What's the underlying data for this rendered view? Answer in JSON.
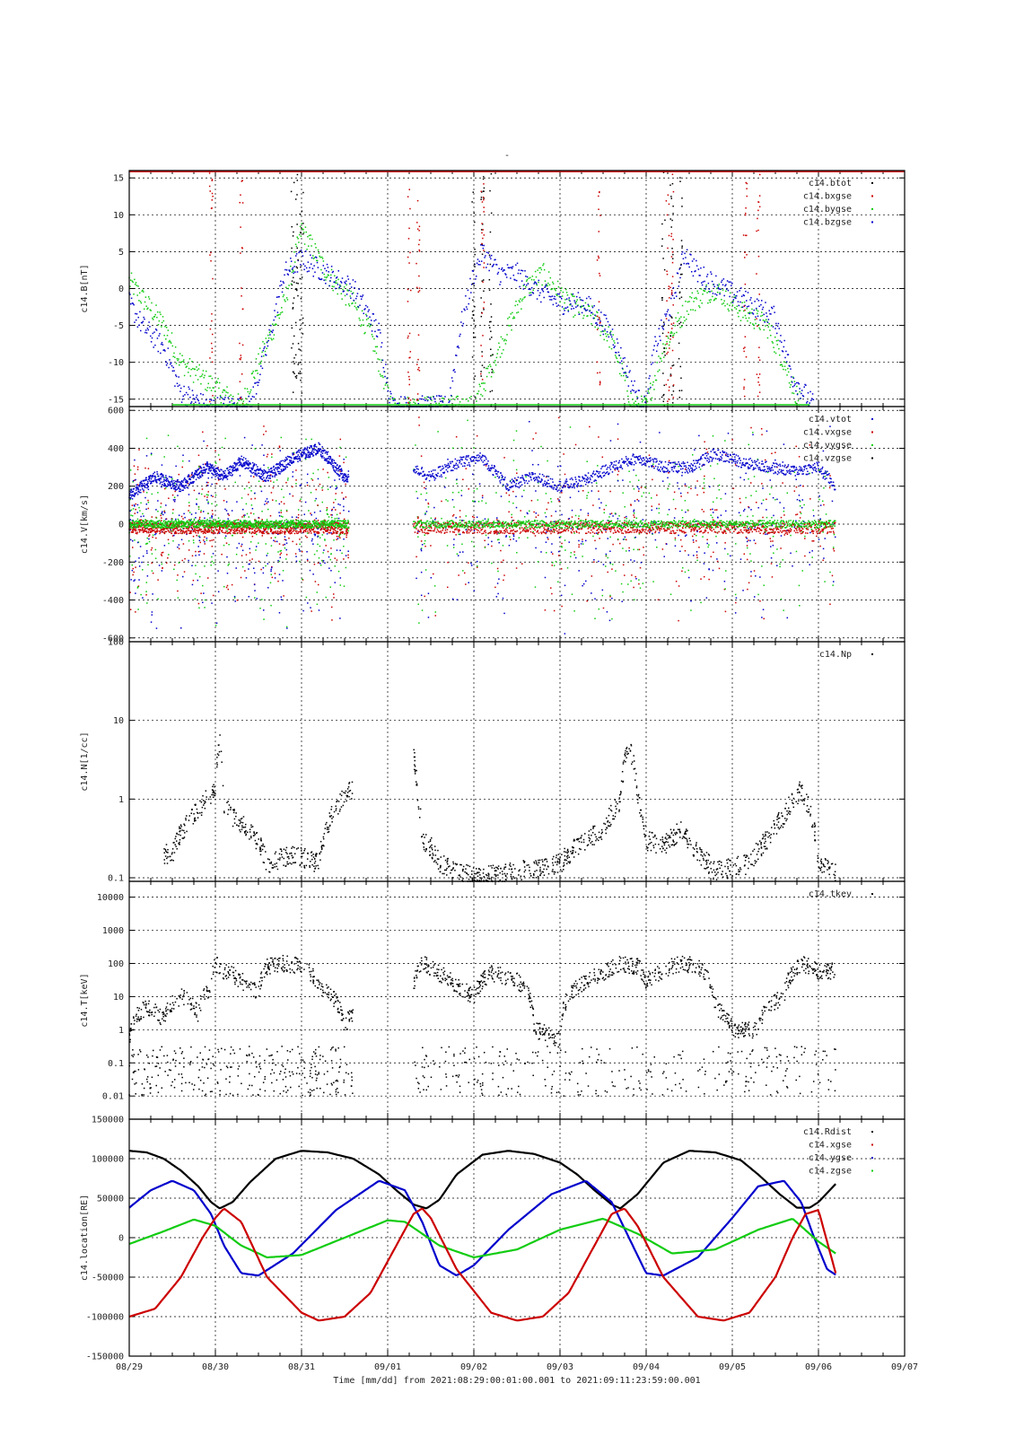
{
  "title": "-",
  "time_axis": {
    "ticks": [
      "08/29",
      "08/30",
      "08/31",
      "09/01",
      "09/02",
      "09/03",
      "09/04",
      "09/05",
      "09/06",
      "09/07"
    ],
    "label": "Time [mm/dd]  from 2021:08:29:00:01:00.001  to  2021:09:11:23:59:00.001"
  },
  "colors": {
    "black": "#000000",
    "red": "#cc0000",
    "green": "#11cc11",
    "blue": "#0000cc"
  },
  "chart_data": [
    {
      "type": "scatter",
      "id": "B",
      "ylabel": "c14.B[nT]",
      "ylim": [
        -16,
        16
      ],
      "yticks": [
        -15,
        -10,
        -5,
        0,
        5,
        10,
        15
      ],
      "ytick_labels": [
        "-15",
        "-10",
        "-5",
        "0",
        "5",
        "10",
        "15"
      ],
      "legend": [
        "c14.btot",
        "c14.bxgse",
        "c14.bygse",
        "c14.bzgse"
      ],
      "series": [
        {
          "name": "c14.bygse",
          "color": "green",
          "x": [
            0,
            0.2,
            0.4,
            0.6,
            1.3,
            1.5,
            1.8,
            2.0,
            2.3,
            2.6,
            2.8,
            3.05,
            4.0,
            4.3,
            4.6,
            4.8,
            5.1,
            5.4,
            5.6,
            5.85,
            6.0,
            6.2,
            6.5,
            6.8,
            7.1,
            7.4,
            7.6,
            7.8
          ],
          "y": [
            1,
            -2,
            -5,
            -10,
            -16,
            -10,
            -2,
            8,
            2,
            -2,
            -6,
            -16,
            -16,
            -8,
            0,
            2,
            -2,
            -4,
            -7,
            -16,
            -16,
            -8,
            -2,
            0,
            -3,
            -5,
            -10,
            -16
          ]
        },
        {
          "name": "c14.bzgse",
          "color": "blue",
          "x": [
            0,
            0.15,
            0.4,
            0.6,
            0.9,
            1.4,
            1.6,
            1.8,
            2.0,
            2.3,
            2.6,
            2.9,
            3.05,
            3.7,
            3.85,
            4.0,
            4.1,
            4.3,
            4.5,
            4.7,
            5.0,
            5.3,
            5.6,
            5.8,
            5.95,
            6.0,
            6.1,
            6.3,
            6.45,
            6.6,
            6.9,
            7.2,
            7.5,
            7.7,
            7.95
          ],
          "y": [
            -2,
            -5,
            -8,
            -14,
            -16,
            -16,
            -8,
            2,
            4,
            2,
            0,
            -6,
            -16,
            -16,
            -5,
            2,
            5,
            2,
            2,
            0,
            -2,
            -2,
            -6,
            -12,
            -16,
            -16,
            -8,
            -2,
            5,
            2,
            0,
            -2,
            -4,
            -12,
            -16
          ]
        }
      ],
      "scatter": [
        {
          "name": "c14.btot",
          "color": "black",
          "x": [
            1.9,
            1.95,
            2.0,
            4.0,
            4.1,
            4.2,
            6.2,
            6.3,
            6.4
          ],
          "y": [
            16,
            14,
            12,
            16,
            14,
            12,
            16,
            14,
            12
          ]
        },
        {
          "name": "c14.bxgse",
          "color": "red",
          "x": [
            0.95,
            1.3,
            3.25,
            3.35,
            4.1,
            5.45,
            6.25,
            6.3,
            7.15,
            7.3
          ],
          "y": [
            10,
            -5,
            -10,
            8,
            12,
            -5,
            10,
            -10,
            5,
            -10
          ]
        }
      ]
    },
    {
      "type": "scatter",
      "id": "V",
      "ylabel": "c14.V[km/s]",
      "ylim": [
        -620,
        620
      ],
      "yticks": [
        -600,
        -400,
        -200,
        0,
        200,
        400,
        600
      ],
      "ytick_labels": [
        "-600",
        "-400",
        "-200",
        "0",
        "200",
        "400",
        "600"
      ],
      "legend": [
        "c14.vtot",
        "c14.vxgse",
        "c14.vygse",
        "c14.vzgse"
      ],
      "segments": [
        [
          0,
          2.55
        ],
        [
          3.3,
          8.2
        ]
      ],
      "series": [
        {
          "name": "c14.vtot",
          "color": "blue",
          "x": [
            0,
            0.3,
            0.6,
            0.9,
            1.1,
            1.3,
            1.6,
            1.9,
            2.2,
            2.5,
            3.3,
            3.5,
            3.8,
            4.1,
            4.4,
            4.7,
            5.0,
            5.3,
            5.6,
            5.9,
            6.2,
            6.5,
            6.8,
            7.1,
            7.4,
            7.7,
            8.0,
            8.2
          ],
          "y": [
            150,
            250,
            200,
            300,
            250,
            330,
            250,
            350,
            400,
            250,
            300,
            250,
            320,
            350,
            200,
            250,
            200,
            230,
            300,
            350,
            300,
            300,
            370,
            330,
            300,
            280,
            300,
            200
          ]
        }
      ],
      "noise": [
        {
          "name": "c14.vxgse",
          "color": "red",
          "center": -20,
          "spread": 60
        },
        {
          "name": "c14.vygse",
          "color": "green",
          "center": 0,
          "spread": 40
        }
      ]
    },
    {
      "type": "scatter",
      "id": "N",
      "ylabel": "c14.N[1/cc]",
      "yscale": "log",
      "ylim": [
        0.09,
        100
      ],
      "yticks": [
        0.1,
        1,
        10,
        100
      ],
      "ytick_labels": [
        "0.1",
        "1",
        "10",
        "100"
      ],
      "legend": [
        "c14.Np"
      ],
      "series": [
        {
          "name": "c14.Np",
          "color": "black",
          "x": [
            0.4,
            0.5,
            0.8,
            0.9,
            1.0,
            1.05,
            1.1,
            1.2,
            1.4,
            1.6,
            1.9,
            2.2,
            3.3,
            3.35,
            3.4,
            3.5,
            3.6,
            4.0,
            4.5,
            5.0,
            5.3,
            5.5,
            5.7,
            5.8,
            5.9,
            6.0,
            6.2,
            6.4,
            6.6,
            6.8,
            7.2,
            7.4,
            7.6,
            7.8,
            8.0,
            8.2
          ],
          "y": [
            0.2,
            0.2,
            0.7,
            1.0,
            1.2,
            5.5,
            0.8,
            0.6,
            0.4,
            0.15,
            0.2,
            0.15,
            3.5,
            1.0,
            0.3,
            0.25,
            0.15,
            0.1,
            0.12,
            0.15,
            0.3,
            0.4,
            0.9,
            4.8,
            1.0,
            0.3,
            0.25,
            0.4,
            0.2,
            0.12,
            0.15,
            0.3,
            0.6,
            1.3,
            0.15,
            0.12
          ]
        }
      ]
    },
    {
      "type": "scatter",
      "id": "T",
      "ylabel": "c14.T[keV]",
      "yscale": "log",
      "ylim": [
        0.002,
        30000
      ],
      "yticks": [
        0.01,
        0.1,
        1,
        10,
        100,
        1000,
        10000
      ],
      "ytick_labels": [
        "0.01",
        "0.1",
        "1",
        "10",
        "100",
        "1000",
        "10000"
      ],
      "legend": [
        "c14.tkev"
      ],
      "series": [
        {
          "name": "c14.tkev",
          "color": "black",
          "x": [
            0,
            0.2,
            0.4,
            0.6,
            0.8,
            0.95,
            1.0,
            1.1,
            1.3,
            1.5,
            1.6,
            1.8,
            2.0,
            2.2,
            2.5,
            3.3,
            3.4,
            3.6,
            3.8,
            4.0,
            4.2,
            4.5,
            4.7,
            5.0,
            5.2,
            5.5,
            5.7,
            5.9,
            6.0,
            6.2,
            6.4,
            6.6,
            6.8,
            7.0,
            7.3,
            7.6,
            7.8,
            8.0,
            8.2
          ],
          "y": [
            0.5,
            5,
            2,
            10,
            3,
            20,
            100,
            60,
            30,
            10,
            80,
            100,
            80,
            20,
            1,
            20,
            100,
            50,
            20,
            10,
            50,
            30,
            1,
            0.5,
            20,
            50,
            100,
            80,
            30,
            60,
            100,
            80,
            5,
            1,
            1,
            10,
            100,
            60,
            60
          ]
        }
      ],
      "low_scatter": [
        {
          "x0": 0,
          "x1": 2.6
        },
        {
          "x0": 3.3,
          "x1": 8.2
        }
      ]
    },
    {
      "type": "line",
      "id": "location",
      "ylabel": "c14.location[RE]",
      "ylim": [
        -150000,
        150000
      ],
      "yticks": [
        -150000,
        -100000,
        -50000,
        0,
        50000,
        100000,
        150000
      ],
      "ytick_labels": [
        "-150000",
        "-100000",
        "-50000",
        "0",
        "50000",
        "100000",
        "150000"
      ],
      "legend": [
        "c14.Rdist",
        "c14.xgse",
        "c14.ygse",
        "c14.zgse"
      ],
      "series": [
        {
          "name": "c14.Rdist",
          "color": "black",
          "x": [
            0,
            0.2,
            0.4,
            0.6,
            0.8,
            0.95,
            1.05,
            1.2,
            1.4,
            1.7,
            2.0,
            2.3,
            2.6,
            2.9,
            3.1,
            3.3,
            3.45,
            3.6,
            3.8,
            4.1,
            4.4,
            4.7,
            5.0,
            5.2,
            5.4,
            5.6,
            5.7,
            5.9,
            6.2,
            6.5,
            6.8,
            7.1,
            7.3,
            7.55,
            7.75,
            7.9,
            8.0,
            8.2
          ],
          "y": [
            110000,
            108000,
            100000,
            85000,
            65000,
            45000,
            37000,
            45000,
            70000,
            100000,
            110000,
            108000,
            100000,
            80000,
            60000,
            42000,
            37000,
            48000,
            80000,
            105000,
            110000,
            106000,
            95000,
            80000,
            60000,
            42000,
            37000,
            55000,
            95000,
            110000,
            108000,
            98000,
            80000,
            55000,
            38000,
            38000,
            45000,
            68000
          ]
        },
        {
          "name": "c14.ygse",
          "color": "blue",
          "x": [
            0,
            0.25,
            0.5,
            0.75,
            0.95,
            1.1,
            1.3,
            1.5,
            1.9,
            2.4,
            2.9,
            3.2,
            3.4,
            3.6,
            3.8,
            4.0,
            4.4,
            4.9,
            5.3,
            5.6,
            5.8,
            6.0,
            6.2,
            6.6,
            7.0,
            7.3,
            7.6,
            7.8,
            7.95,
            8.1,
            8.2
          ],
          "y": [
            38000,
            60000,
            72000,
            60000,
            30000,
            -10000,
            -45000,
            -48000,
            -20000,
            35000,
            72000,
            60000,
            20000,
            -35000,
            -48000,
            -35000,
            10000,
            55000,
            72000,
            45000,
            0,
            -45000,
            -48000,
            -25000,
            25000,
            65000,
            72000,
            45000,
            0,
            -40000,
            -47000
          ]
        },
        {
          "name": "c14.zgse",
          "color": "green",
          "x": [
            0,
            0.4,
            0.75,
            1.0,
            1.3,
            1.6,
            2.0,
            2.5,
            3.0,
            3.2,
            3.6,
            4.0,
            4.5,
            5.0,
            5.5,
            5.9,
            6.3,
            6.8,
            7.3,
            7.7,
            8.0,
            8.2
          ],
          "y": [
            -8000,
            8000,
            23000,
            15000,
            -10000,
            -25000,
            -22000,
            0,
            22000,
            20000,
            -10000,
            -25000,
            -15000,
            10000,
            24000,
            5000,
            -20000,
            -15000,
            10000,
            24000,
            -5000,
            -20000
          ]
        },
        {
          "name": "c14.xgse",
          "color": "red",
          "x": [
            0,
            0.3,
            0.6,
            0.85,
            1.0,
            1.1,
            1.3,
            1.6,
            2.0,
            2.2,
            2.5,
            2.8,
            3.1,
            3.3,
            3.4,
            3.5,
            3.8,
            4.2,
            4.5,
            4.8,
            5.1,
            5.4,
            5.6,
            5.75,
            5.9,
            6.2,
            6.6,
            6.9,
            7.2,
            7.5,
            7.7,
            7.85,
            8.0,
            8.2
          ],
          "y": [
            -100000,
            -90000,
            -50000,
            0,
            25000,
            37000,
            20000,
            -50000,
            -95000,
            -105000,
            -100000,
            -70000,
            -10000,
            30000,
            37000,
            25000,
            -40000,
            -95000,
            -105000,
            -100000,
            -70000,
            -10000,
            30000,
            37000,
            15000,
            -50000,
            -100000,
            -105000,
            -95000,
            -50000,
            0,
            30000,
            35000,
            -45000
          ]
        }
      ]
    }
  ]
}
